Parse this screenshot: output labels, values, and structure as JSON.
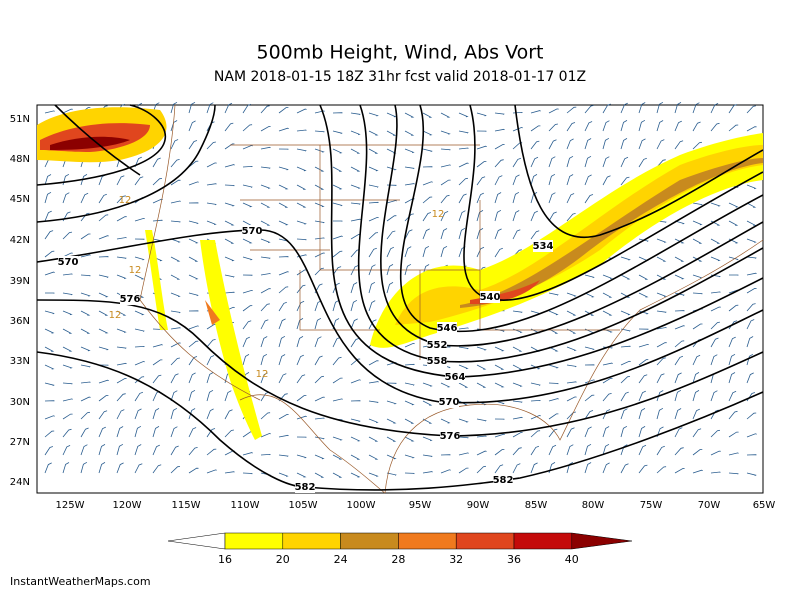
{
  "header": {
    "title": "500mb Height, Wind, Abs Vort",
    "subtitle": "NAM 2018-01-15 18Z 31hr fcst valid 2018-01-17 01Z"
  },
  "map": {
    "lat_labels": [
      "51N",
      "48N",
      "45N",
      "42N",
      "39N",
      "36N",
      "33N",
      "30N",
      "27N",
      "24N"
    ],
    "lon_labels": [
      "125W",
      "120W",
      "115W",
      "110W",
      "105W",
      "100W",
      "95W",
      "90W",
      "85W",
      "80W",
      "75W",
      "70W",
      "65W"
    ],
    "contour_labels": [
      "570",
      "570",
      "576",
      "534",
      "540",
      "546",
      "552",
      "558",
      "564",
      "570",
      "576",
      "582",
      "582",
      "12",
      "12",
      "12",
      "12",
      "12"
    ]
  },
  "colorbar": {
    "ticks": [
      16,
      20,
      24,
      28,
      32,
      36,
      40
    ],
    "colors": [
      "#ffffff",
      "#ffff00",
      "#ffd400",
      "#c88a1e",
      "#f07a1e",
      "#e0461e",
      "#c40a0a",
      "#8b0000"
    ]
  },
  "footer": "InstantWeatherMaps.com"
}
